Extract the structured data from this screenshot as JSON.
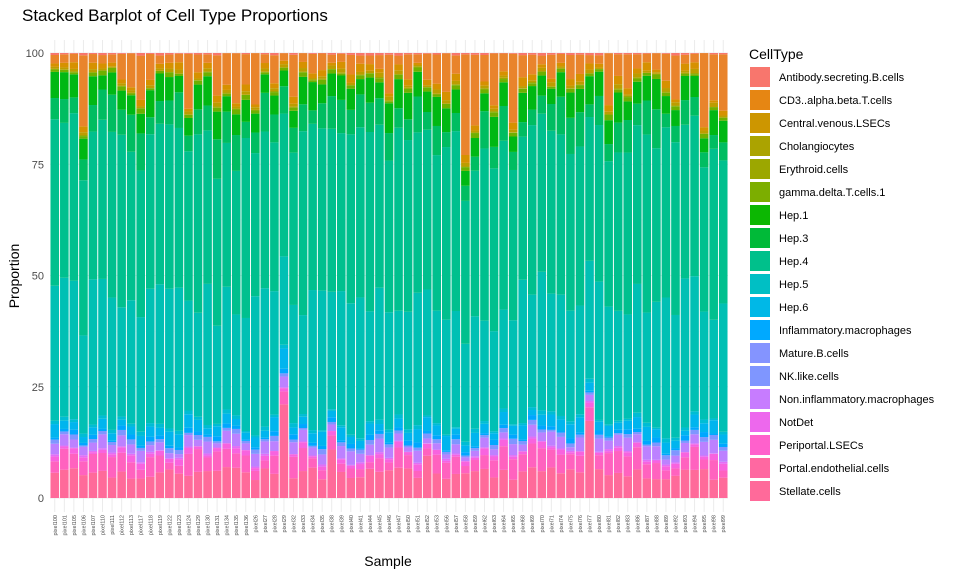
{
  "chart_data": {
    "type": "bar",
    "stacked": true,
    "title": "Stacked Barplot of Cell Type Proportions",
    "xlabel": "Sample",
    "ylabel": "Proportion",
    "ylim": [
      0,
      100
    ],
    "yticks": [
      0,
      25,
      50,
      75,
      100
    ],
    "grid": true,
    "legend_title": "CellType",
    "legend_position": "right",
    "categories": [
      "pixel100",
      "pixel101",
      "pixel105",
      "pixel106",
      "pixel107",
      "pixel110",
      "pixel111",
      "pixel112",
      "pixel113",
      "pixel117",
      "pixel118",
      "pixel119",
      "pixel122",
      "pixel123",
      "pixel124",
      "pixel129",
      "pixel130",
      "pixel131",
      "pixel134",
      "pixel135",
      "pixel136",
      "pixel26",
      "pixel27",
      "pixel28",
      "pixel29",
      "pixel32",
      "pixel33",
      "pixel34",
      "pixel35",
      "pixel38",
      "pixel39",
      "pixel40",
      "pixel41",
      "pixel44",
      "pixel45",
      "pixel46",
      "pixel47",
      "pixel50",
      "pixel51",
      "pixel52",
      "pixel53",
      "pixel56",
      "pixel57",
      "pixel58",
      "pixel59",
      "pixel62",
      "pixel63",
      "pixel64",
      "pixel65",
      "pixel68",
      "pixel69",
      "pixel70",
      "pixel71",
      "pixel74",
      "pixel75",
      "pixel76",
      "pixel77",
      "pixel80",
      "pixel81",
      "pixel82",
      "pixel83",
      "pixel86",
      "pixel87",
      "pixel88",
      "pixel89",
      "pixel92",
      "pixel93",
      "pixel94",
      "pixel95",
      "pixel98",
      "pixel99"
    ],
    "cell_types": [
      "Antibody.secreting.B.cells",
      "CD3..alpha.beta.T.cells",
      "Central.venous.LSECs",
      "Cholangiocytes",
      "Erythroid.cells",
      "gamma.delta.T.cells.1",
      "Hep.1",
      "Hep.3",
      "Hep.4",
      "Hep.5",
      "Hep.6",
      "Inflammatory.macrophages",
      "Mature.B.cells",
      "NK.like.cells",
      "Non.inflammatory.macrophages",
      "NotDet",
      "Periportal.LSECs",
      "Portal.endothelial.cells",
      "Stellate.cells"
    ],
    "colors": [
      "#F8766D",
      "#E9842C",
      "#D69100",
      "#BC9D00",
      "#9CA700",
      "#6FB000",
      "#00B813",
      "#00BD61",
      "#00C08E",
      "#00C0B4",
      "#00BDD4",
      "#00B5EE",
      "#00A7FF",
      "#7F96FF",
      "#BC81FF",
      "#E26EF7",
      "#F863DF",
      "#FF62BF",
      "#FF6A9A"
    ],
    "legend_swatch_colors": [
      "#F8766D",
      "#E68613",
      "#CD9600",
      "#ABA300",
      "#9CA700",
      "#7CAE00",
      "#0CB702",
      "#00BA38",
      "#00C08B",
      "#00BFC4",
      "#00B8E7",
      "#00A9FF",
      "#8494FF",
      "#7F96FF",
      "#C77CFF",
      "#ED68ED",
      "#FF61CC",
      "#FF68A1",
      "#FF6A9A"
    ]
  }
}
